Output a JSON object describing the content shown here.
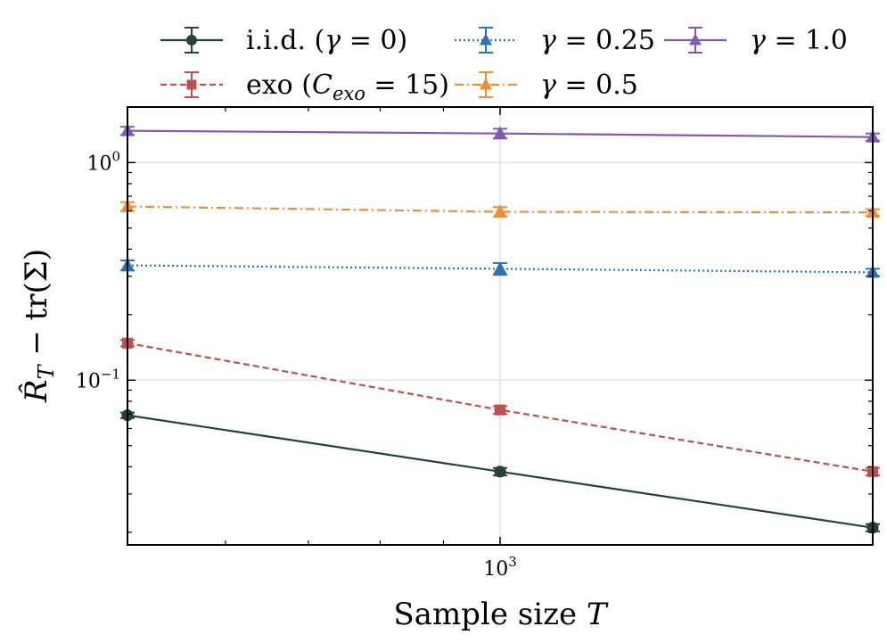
{
  "chart_data": {
    "type": "line",
    "xscale": "log",
    "yscale": "log",
    "x": [
      500,
      1000,
      2000
    ],
    "xlim": [
      500,
      2000
    ],
    "ylim": [
      0.0175,
      1.8
    ],
    "xlabel": "Sample size T",
    "ylabel": "R̂_T − tr(Σ)",
    "x_ticks": [
      {
        "value": 1000,
        "base": "10",
        "exp": "3"
      }
    ],
    "y_ticks": [
      {
        "value": 0.1,
        "base": "10",
        "exp": "−1"
      },
      {
        "value": 1.0,
        "base": "10",
        "exp": "0"
      }
    ],
    "grid": true,
    "legend_position": "top, above plot",
    "series": [
      {
        "name": "i.i.d. (γ = 0)",
        "color": "#24413a",
        "linestyle": "solid",
        "marker": "circle",
        "values": [
          0.069,
          0.038,
          0.021
        ],
        "errors": [
          0.002,
          0.0015,
          0.0008
        ]
      },
      {
        "name": "exo (C_exo = 15)",
        "color": "#c0504d",
        "linestyle": "dashed",
        "marker": "square",
        "values": [
          0.148,
          0.073,
          0.038
        ],
        "errors": [
          0.005,
          0.003,
          0.0015
        ]
      },
      {
        "name": "γ = 0.25",
        "color": "#2c73b5",
        "linestyle": "dotted",
        "marker": "triangle",
        "values": [
          0.337,
          0.325,
          0.313
        ],
        "errors": [
          0.018,
          0.02,
          0.012
        ]
      },
      {
        "name": "γ = 0.5",
        "color": "#f28e2b",
        "linestyle": "dashdot",
        "marker": "triangle",
        "values": [
          0.628,
          0.594,
          0.59
        ],
        "errors": [
          0.03,
          0.03,
          0.02
        ]
      },
      {
        "name": "γ = 1.0",
        "color": "#7f59b5",
        "linestyle": "solid",
        "marker": "triangle",
        "values": [
          1.4,
          1.36,
          1.31
        ],
        "errors": [
          0.06,
          0.07,
          0.05
        ]
      }
    ]
  }
}
